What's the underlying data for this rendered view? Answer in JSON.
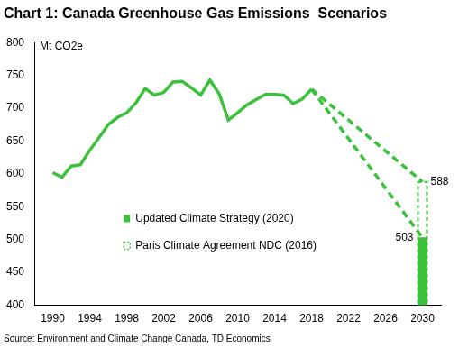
{
  "chart_data": {
    "type": "line",
    "title": "Chart 1: Canada Greenhouse Gas Emissions  Scenarios",
    "y_label": "Mt CO2e",
    "source": "Source: Environment and Climate Change Canada, TD Economics",
    "xlim": [
      1990,
      2030
    ],
    "xticks": [
      1990,
      1994,
      1998,
      2002,
      2006,
      2010,
      2014,
      2018,
      2022,
      2026,
      2030
    ],
    "ylim": [
      400,
      800
    ],
    "yticks": [
      400,
      450,
      500,
      550,
      600,
      650,
      700,
      750,
      800
    ],
    "grid": false,
    "legend": "left",
    "series": [
      {
        "type": "line",
        "color": "#3cc13c",
        "line_style": "solid",
        "marker": "none",
        "x": [
          1990,
          1991,
          1992,
          1993,
          1994,
          1995,
          1996,
          1997,
          1998,
          1999,
          2000,
          2001,
          2002,
          2003,
          2004,
          2005,
          2006,
          2007,
          2008,
          2009,
          2010,
          2011,
          2012,
          2013,
          2014,
          2015,
          2016,
          2017,
          2018
        ],
        "values": [
          602,
          595,
          612,
          614,
          636,
          655,
          675,
          686,
          693,
          708,
          730,
          720,
          724,
          740,
          741,
          731,
          720,
          743,
          722,
          682,
          693,
          705,
          713,
          721,
          721,
          720,
          707,
          714,
          729
        ]
      },
      {
        "type": "line",
        "color": "#3cc13c",
        "line_style": "dashed",
        "marker": "none",
        "x": [
          2018,
          2030
        ],
        "values": [
          729,
          588
        ]
      },
      {
        "type": "line",
        "color": "#3cc13c",
        "line_style": "dashed",
        "marker": "none",
        "x": [
          2018,
          2030
        ],
        "values": [
          729,
          503
        ]
      },
      {
        "name": "Paris Climate Agreement NDC (2016)",
        "type": "bar",
        "color": "#3cc13c",
        "line_style": "dashed",
        "x": [
          2030
        ],
        "values": [
          588
        ],
        "data_labels": true
      },
      {
        "name": "Updated Climate Strategy (2020)",
        "type": "bar",
        "color": "#3cc13c",
        "line_style": "solid",
        "x": [
          2030
        ],
        "values": [
          503
        ],
        "data_labels": true
      }
    ]
  }
}
